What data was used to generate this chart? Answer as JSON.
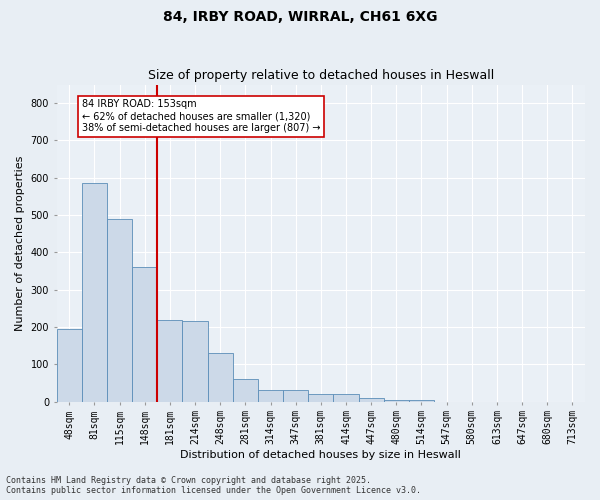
{
  "title1": "84, IRBY ROAD, WIRRAL, CH61 6XG",
  "title2": "Size of property relative to detached houses in Heswall",
  "xlabel": "Distribution of detached houses by size in Heswall",
  "ylabel": "Number of detached properties",
  "categories": [
    "48sqm",
    "81sqm",
    "115sqm",
    "148sqm",
    "181sqm",
    "214sqm",
    "248sqm",
    "281sqm",
    "314sqm",
    "347sqm",
    "381sqm",
    "414sqm",
    "447sqm",
    "480sqm",
    "514sqm",
    "547sqm",
    "580sqm",
    "613sqm",
    "647sqm",
    "680sqm",
    "713sqm"
  ],
  "values": [
    195,
    585,
    490,
    360,
    220,
    215,
    130,
    60,
    30,
    30,
    20,
    20,
    10,
    5,
    5,
    0,
    0,
    0,
    0,
    0,
    0
  ],
  "bar_color": "#ccd9e8",
  "bar_edge_color": "#5b8db8",
  "vline_x_index": 3.5,
  "vline_color": "#cc0000",
  "annotation_text": "84 IRBY ROAD: 153sqm\n← 62% of detached houses are smaller (1,320)\n38% of semi-detached houses are larger (807) →",
  "annotation_box_color": "#ffffff",
  "annotation_box_edge": "#cc0000",
  "ylim": [
    0,
    850
  ],
  "yticks": [
    0,
    100,
    200,
    300,
    400,
    500,
    600,
    700,
    800
  ],
  "footer1": "Contains HM Land Registry data © Crown copyright and database right 2025.",
  "footer2": "Contains public sector information licensed under the Open Government Licence v3.0.",
  "bg_color": "#e8eef4",
  "plot_bg_color": "#eaf0f6",
  "title_fontsize": 10,
  "subtitle_fontsize": 9,
  "tick_fontsize": 7,
  "label_fontsize": 8,
  "footer_fontsize": 6
}
